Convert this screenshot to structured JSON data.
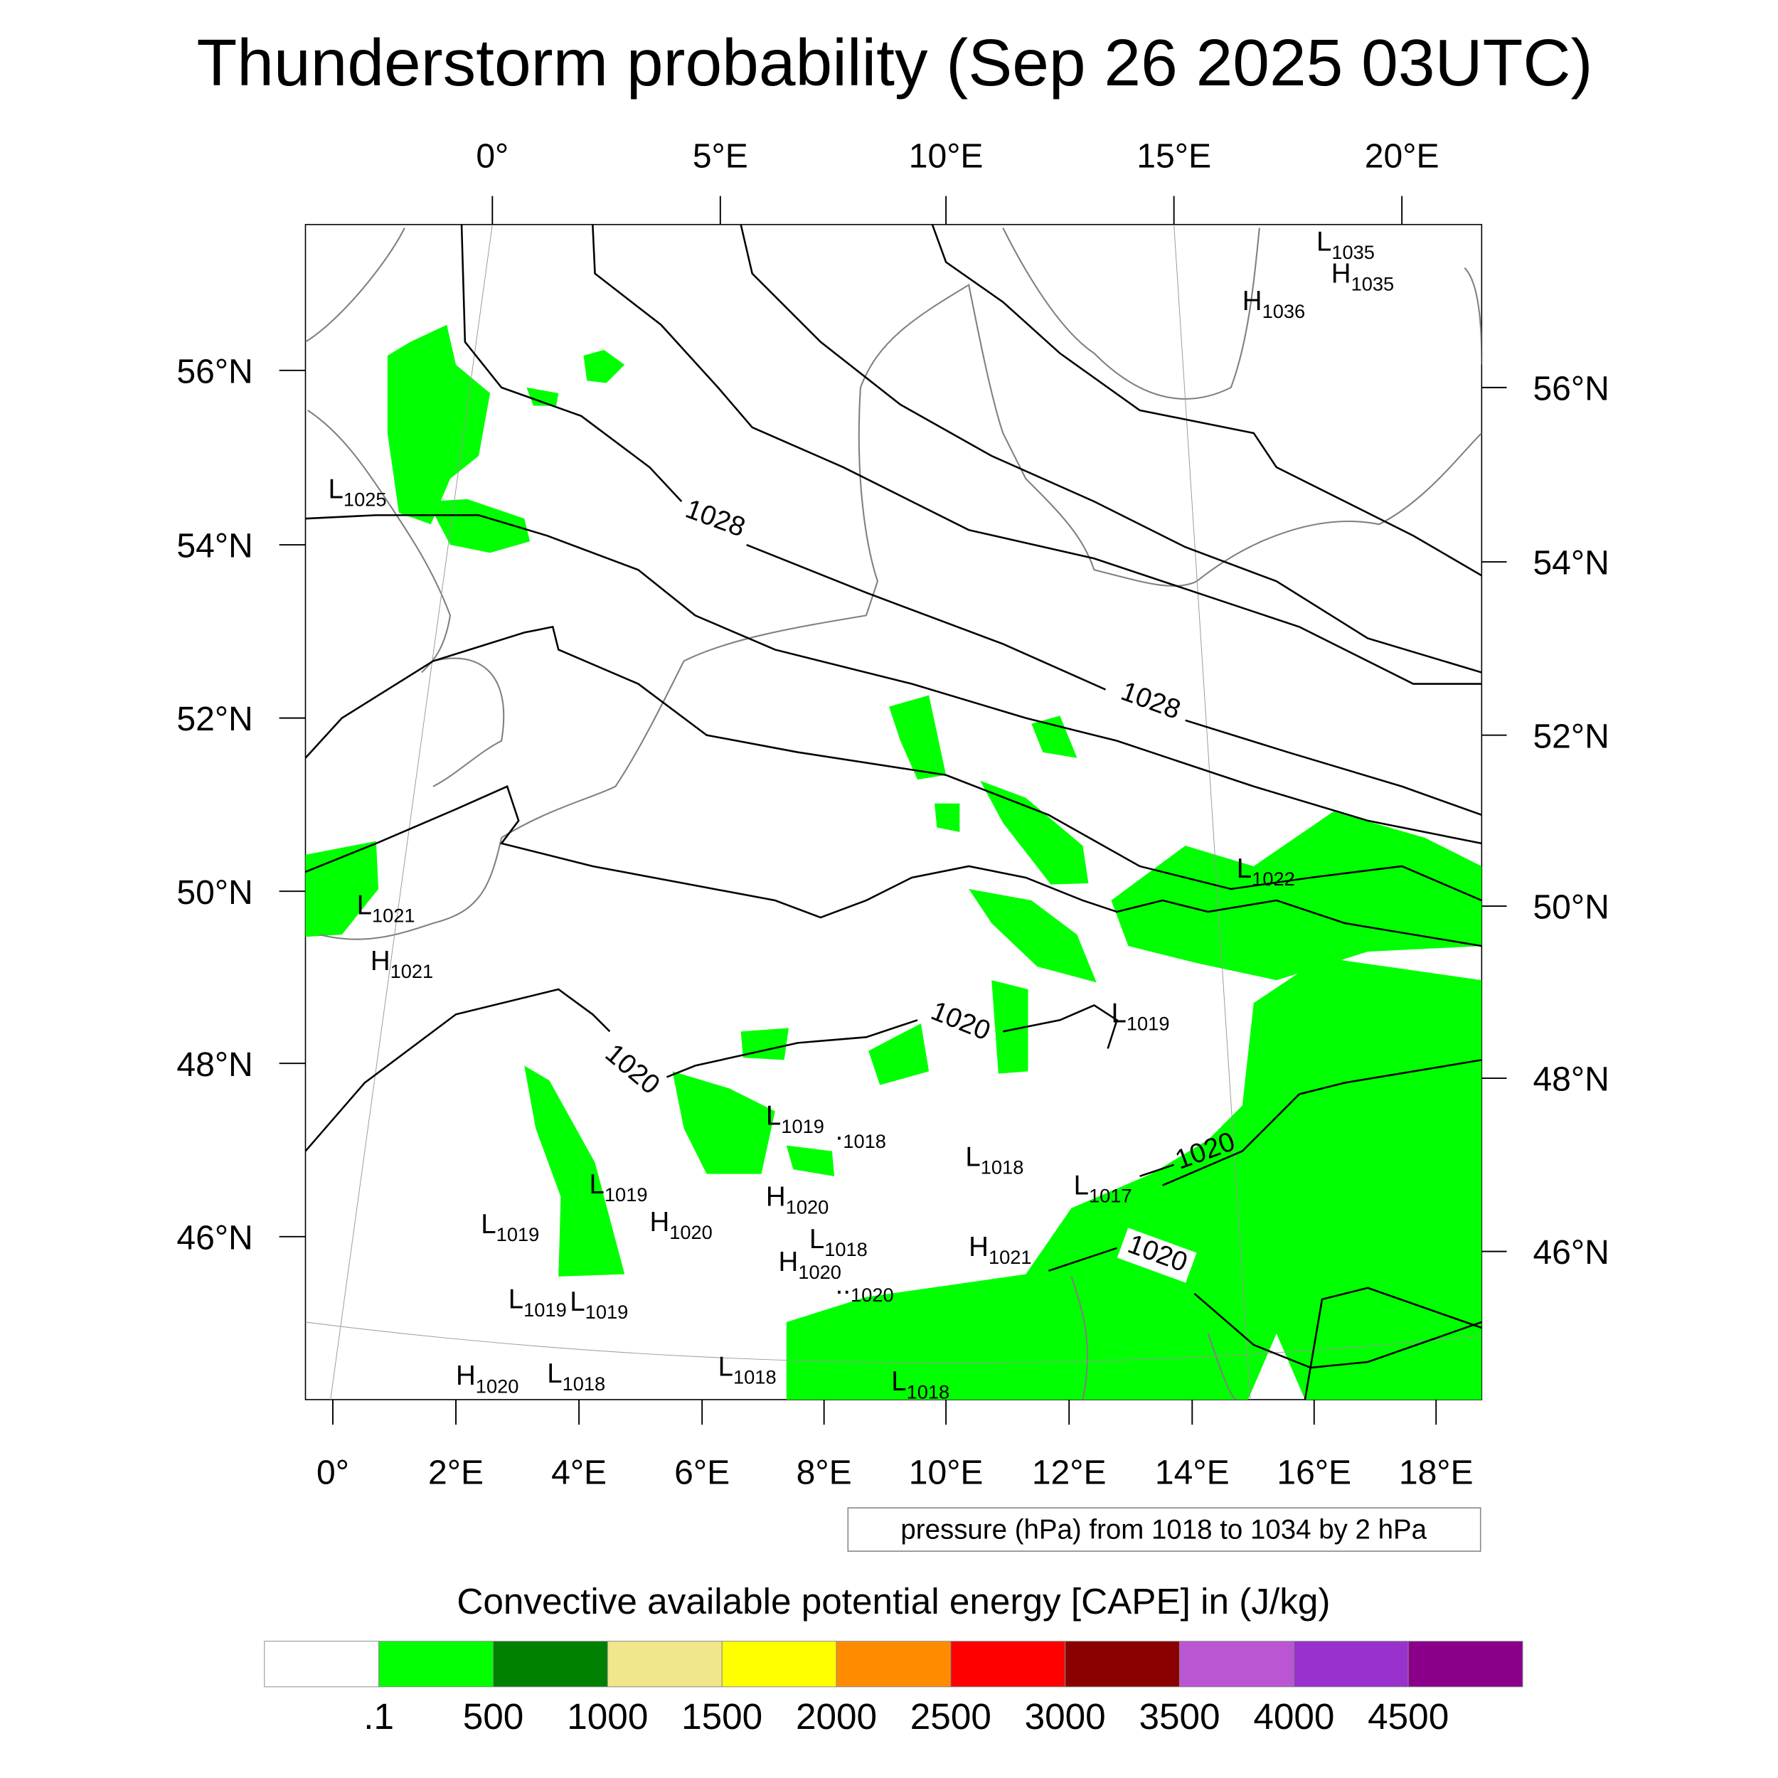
{
  "title": "Thunderstorm probability (Sep 26 2025 03UTC)",
  "axes": {
    "top_lon": [
      "0°",
      "5°E",
      "10°E",
      "15°E",
      "20°E"
    ],
    "bottom_lon": [
      "0°",
      "2°E",
      "4°E",
      "6°E",
      "8°E",
      "10°E",
      "12°E",
      "14°E",
      "16°E",
      "18°E"
    ],
    "left_lat": [
      "56°N",
      "54°N",
      "52°N",
      "50°N",
      "48°N",
      "46°N"
    ],
    "right_lat": [
      "56°N",
      "54°N",
      "52°N",
      "50°N",
      "48°N",
      "46°N"
    ]
  },
  "contour_info": "pressure (hPa) from 1018 to 1034 by 2 hPa",
  "contour_labels": [
    "1028",
    "1028",
    "1020",
    "1020",
    "1020",
    "1020"
  ],
  "pressure_centers": [
    {
      "t": "L",
      "v": "1025"
    },
    {
      "t": "L",
      "v": "1021"
    },
    {
      "t": "H",
      "v": "1021"
    },
    {
      "t": "L",
      "v": "1022"
    },
    {
      "t": "L",
      "v": "1019"
    },
    {
      "t": "L",
      "v": "1019"
    },
    {
      "t": ".",
      "v": "1018"
    },
    {
      "t": "L",
      "v": "1018"
    },
    {
      "t": "L",
      "v": "1017"
    },
    {
      "t": "L",
      "v": "1019"
    },
    {
      "t": "H",
      "v": "1020"
    },
    {
      "t": "L",
      "v": "1019"
    },
    {
      "t": "H",
      "v": "1020"
    },
    {
      "t": "L",
      "v": "1018"
    },
    {
      "t": "H",
      "v": "1020"
    },
    {
      "t": "H",
      "v": "1021"
    },
    {
      "t": "..",
      "v": "1020"
    },
    {
      "t": "L",
      "v": "1019"
    },
    {
      "t": "L",
      "v": "1019"
    },
    {
      "t": "H",
      "v": "1020"
    },
    {
      "t": "L",
      "v": "1018"
    },
    {
      "t": "L",
      "v": "1018"
    },
    {
      "t": "L",
      "v": "1018"
    },
    {
      "t": "L",
      "v": "1035"
    },
    {
      "t": "H",
      "v": "1035"
    },
    {
      "t": "H",
      "v": "1036"
    }
  ],
  "colorbar": {
    "title": "Convective available potential energy [CAPE] in (J/kg)",
    "labels": [
      ".1",
      "500",
      "1000",
      "1500",
      "2000",
      "2500",
      "3000",
      "3500",
      "4000",
      "4500"
    ],
    "colors": [
      "#ffffff",
      "#00ff00",
      "#008000",
      "#f0e68c",
      "#ffff00",
      "#ff8c00",
      "#ff0000",
      "#8b0000",
      "#ba55d3",
      "#9932cc",
      "#8b008b"
    ]
  }
}
